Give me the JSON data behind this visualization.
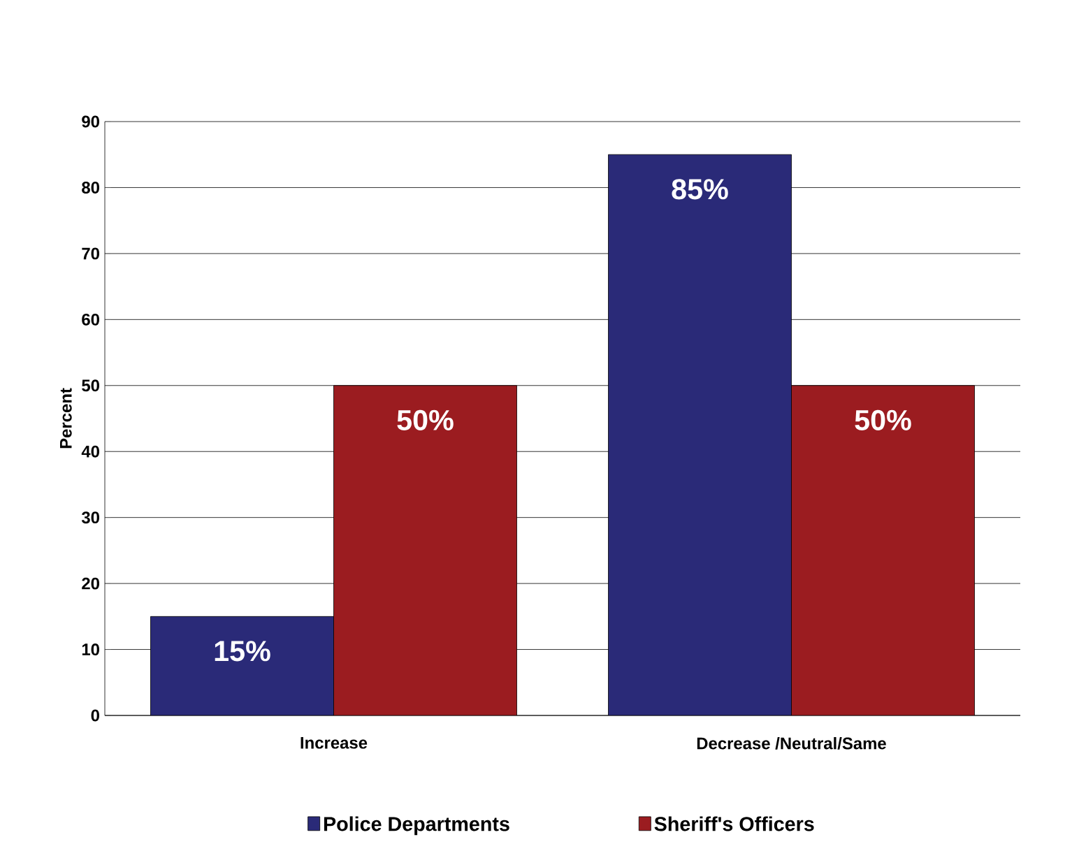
{
  "chart_data": {
    "type": "bar",
    "ylabel": "Percent",
    "categories": [
      "Increase",
      "Decrease /Neutral/Same"
    ],
    "series": [
      {
        "name": "Police Departments",
        "color": "#2a2a78",
        "values": [
          15,
          85
        ],
        "value_labels": [
          "15%",
          "85%"
        ]
      },
      {
        "name": "Sheriff's Officers",
        "color": "#9b1c20",
        "values": [
          50,
          50
        ],
        "value_labels": [
          "50%",
          "50%"
        ]
      }
    ],
    "ylim": [
      0,
      90
    ],
    "yticks": [
      0,
      10,
      20,
      30,
      40,
      50,
      60,
      70,
      80,
      90
    ],
    "grid": "y",
    "legend": "bottom"
  }
}
